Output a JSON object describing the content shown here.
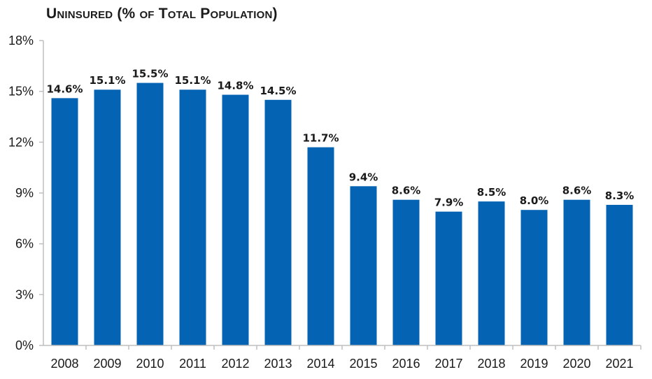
{
  "chart_data": {
    "type": "bar",
    "title": "Uninsured (% of Total Population)",
    "xlabel": "",
    "ylabel": "",
    "categories": [
      "2008",
      "2009",
      "2010",
      "2011",
      "2012",
      "2013",
      "2014",
      "2015",
      "2016",
      "2017",
      "2018",
      "2019",
      "2020",
      "2021"
    ],
    "values": [
      14.6,
      15.1,
      15.5,
      15.1,
      14.8,
      14.5,
      11.7,
      9.4,
      8.6,
      7.9,
      8.5,
      8.0,
      8.6,
      8.3
    ],
    "value_labels": [
      "14.6%",
      "15.1%",
      "15.5%",
      "15.1%",
      "14.8%",
      "14.5%",
      "11.7%",
      "9.4%",
      "8.6%",
      "7.9%",
      "8.5%",
      "8.0%",
      "8.6%",
      "8.3%"
    ],
    "y_ticks": [
      0,
      3,
      6,
      9,
      12,
      15,
      18
    ],
    "y_tick_labels": [
      "0%",
      "3%",
      "6%",
      "9%",
      "12%",
      "15%",
      "18%"
    ],
    "ylim": [
      0,
      18
    ],
    "grid": false,
    "legend": "none",
    "bar_color": "#0563b4",
    "axis_color": "#bfbfbf"
  }
}
